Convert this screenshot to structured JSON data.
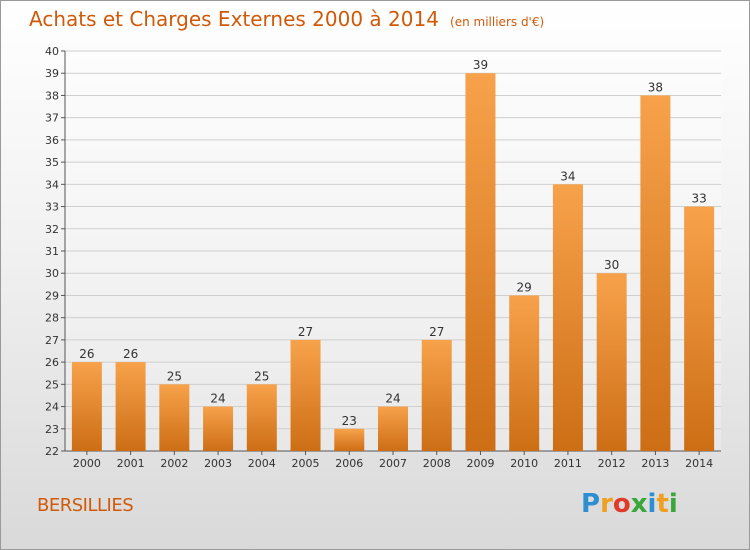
{
  "header": {
    "title": "Achats et Charges Externes 2000 à 2014",
    "subtitle": "(en milliers d'€)"
  },
  "commune": "BERSILLIES",
  "logo": {
    "text": "Proxiti",
    "letters": [
      {
        "ch": "P",
        "color": "#2e8fd0"
      },
      {
        "ch": "r",
        "color": "#f0a020"
      },
      {
        "ch": "o",
        "color": "#e03a2a"
      },
      {
        "ch": "x",
        "color": "#3aa73a"
      },
      {
        "ch": "i",
        "color": "#2e8fd0"
      },
      {
        "ch": "t",
        "color": "#f0a020"
      },
      {
        "ch": "i",
        "color": "#3aa73a"
      }
    ]
  },
  "colors": {
    "bar_light": "#f7a24b",
    "bar_dark": "#cd6e15",
    "title": "#d05a0a",
    "grid": "#cfcfcf"
  },
  "chart_data": {
    "type": "bar",
    "title": "Achats et Charges Externes 2000 à 2014",
    "subtitle": "(en milliers d'€)",
    "categories": [
      "2000",
      "2001",
      "2002",
      "2003",
      "2004",
      "2005",
      "2006",
      "2007",
      "2008",
      "2009",
      "2010",
      "2011",
      "2012",
      "2013",
      "2014"
    ],
    "values": [
      26,
      26,
      25,
      24,
      25,
      27,
      23,
      24,
      27,
      39,
      29,
      34,
      30,
      38,
      33
    ],
    "ylim": [
      22,
      40
    ],
    "ytick_step": 1,
    "grid": true,
    "show_data_labels": true
  }
}
